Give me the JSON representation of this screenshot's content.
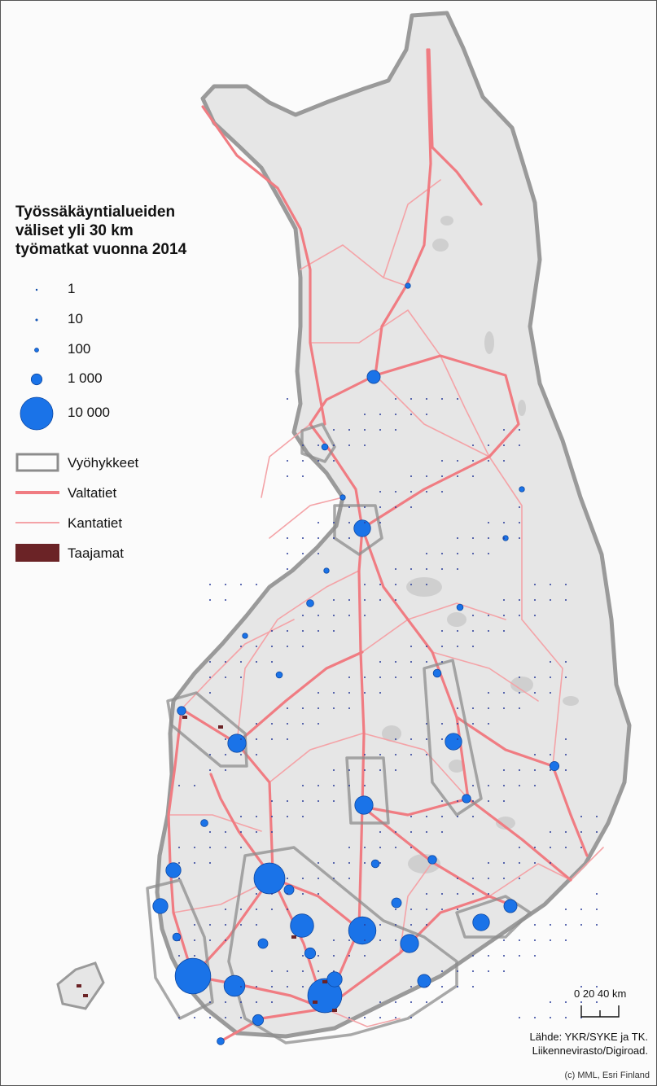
{
  "legend": {
    "title_lines": [
      "Työssäkäyntialueiden",
      "väliset yli 30 km",
      "työmatkat vuonna 2014"
    ],
    "sizes": [
      {
        "label": "1",
        "value": 1
      },
      {
        "label": "10",
        "value": 10
      },
      {
        "label": "100",
        "value": 100
      },
      {
        "label": "1 000",
        "value": 1000
      },
      {
        "label": "10 000",
        "value": 10000
      }
    ],
    "layers": [
      {
        "label": "Vyöhykkeet",
        "kind": "zone"
      },
      {
        "label": "Valtatiet",
        "kind": "main-road"
      },
      {
        "label": "Kantatiet",
        "kind": "minor-road"
      },
      {
        "label": "Taajamat",
        "kind": "urban"
      }
    ]
  },
  "scale": {
    "label": "0  20 40 km"
  },
  "source": {
    "line1": "Lähde: YKR/SYKE ja TK.",
    "line2": "Liikennevirasto/Digiroad."
  },
  "copyright": "(c) MML, Esri Finland",
  "colors": {
    "land": "#e6e6e6",
    "land_edge": "#9a9a9a",
    "main_road": "#f07c82",
    "minor_road": "#f4a3a7",
    "flow": "#1a73e8",
    "flow_stroke": "#0d47a1",
    "zone": "#8c8c8c",
    "urban": "#6b2326"
  }
}
